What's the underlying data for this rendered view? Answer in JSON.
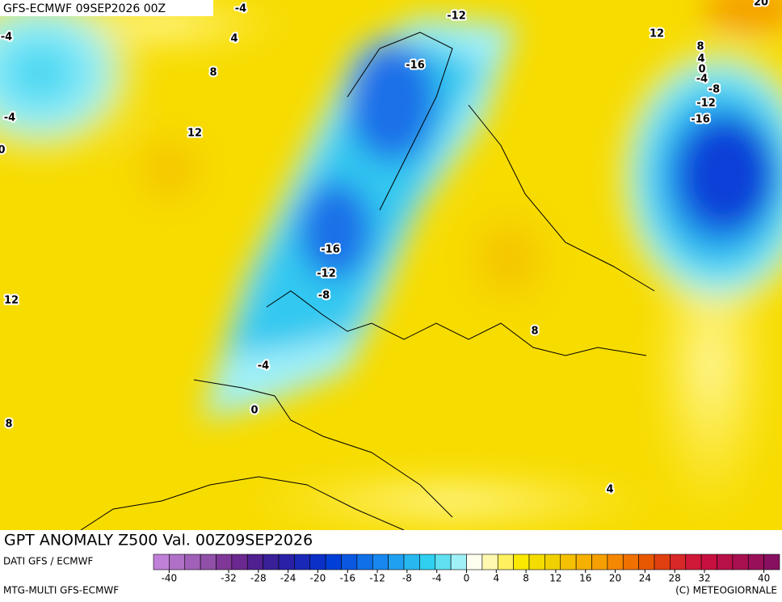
{
  "header": {
    "title": "GFS-ECMWF 09SEP2026 00Z"
  },
  "footer": {
    "title": "GPT ANOMALY Z500 Val. 00Z09SEP2026",
    "source": "DATI GFS / ECMWF",
    "model": "MTG-MULTI GFS-ECMWF",
    "copyright": "(C) METEOGIORNALE"
  },
  "contour_labels": [
    -4,
    -12,
    20,
    4,
    12,
    -4,
    8,
    4,
    0,
    -16,
    -4,
    8,
    -8,
    -12,
    -4,
    12,
    -16,
    0,
    -16,
    -12,
    -8,
    12,
    8,
    -4,
    0,
    8,
    4
  ],
  "colorbar": {
    "ticks": [
      -40,
      -32,
      -28,
      -24,
      -20,
      -16,
      -12,
      -8,
      -4,
      0,
      4,
      8,
      12,
      16,
      20,
      24,
      28,
      32,
      40
    ],
    "colors": [
      "#c080d8",
      "#b070c8",
      "#a060b8",
      "#9050a8",
      "#803898",
      "#6a2890",
      "#502090",
      "#3a2098",
      "#2a20a8",
      "#1a28b8",
      "#0a30c8",
      "#0040d8",
      "#0a58e0",
      "#1070e8",
      "#1888f0",
      "#20a0f0",
      "#28b8f0",
      "#30d0f0",
      "#60e0f0",
      "#a0f0f8",
      "#fffff0",
      "#fff8b0",
      "#fff060",
      "#fae800",
      "#f5dc00",
      "#f0d000",
      "#f5c000",
      "#f5b000",
      "#f5a000",
      "#f58800",
      "#f07000",
      "#e85800",
      "#e04010",
      "#d82828",
      "#d01838",
      "#c81040",
      "#b81048",
      "#a81050",
      "#981058",
      "#881060"
    ]
  }
}
